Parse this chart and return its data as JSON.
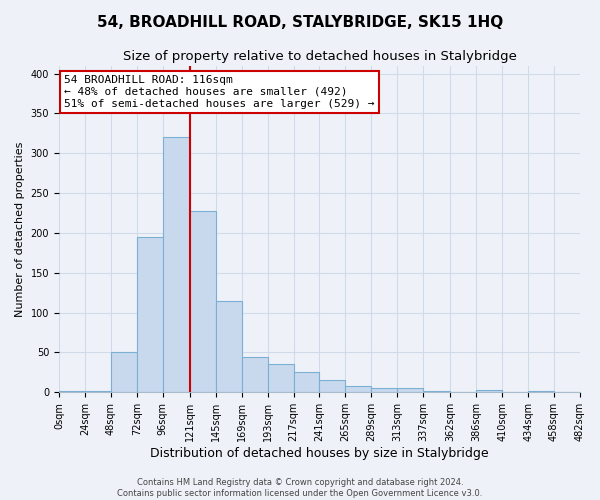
{
  "title": "54, BROADHILL ROAD, STALYBRIDGE, SK15 1HQ",
  "subtitle": "Size of property relative to detached houses in Stalybridge",
  "xlabel": "Distribution of detached houses by size in Stalybridge",
  "ylabel": "Number of detached properties",
  "bin_edges": [
    0,
    24,
    48,
    72,
    96,
    121,
    145,
    169,
    193,
    217,
    241,
    265,
    289,
    313,
    337,
    362,
    386,
    410,
    434,
    458,
    482
  ],
  "bin_heights": [
    2,
    2,
    50,
    195,
    320,
    228,
    115,
    44,
    35,
    25,
    15,
    8,
    5,
    5,
    2,
    1,
    3,
    0,
    2,
    0
  ],
  "bar_color": "#c8d9ed",
  "bar_edge_color": "#7bafd4",
  "property_line_x": 121,
  "property_line_color": "#cc0000",
  "annotation_title": "54 BROADHILL ROAD: 116sqm",
  "annotation_line1": "← 48% of detached houses are smaller (492)",
  "annotation_line2": "51% of semi-detached houses are larger (529) →",
  "annotation_box_facecolor": "#ffffff",
  "annotation_box_edgecolor": "#cc0000",
  "ylim": [
    0,
    410
  ],
  "yticks": [
    0,
    50,
    100,
    150,
    200,
    250,
    300,
    350,
    400
  ],
  "grid_color": "#d0dae8",
  "background_color": "#eef2f8",
  "footer_line1": "Contains HM Land Registry data © Crown copyright and database right 2024.",
  "footer_line2": "Contains public sector information licensed under the Open Government Licence v3.0.",
  "title_fontsize": 11,
  "subtitle_fontsize": 9.5,
  "ylabel_fontsize": 8,
  "xlabel_fontsize": 9,
  "tick_label_fontsize": 7,
  "annotation_fontsize": 8,
  "footer_fontsize": 6
}
